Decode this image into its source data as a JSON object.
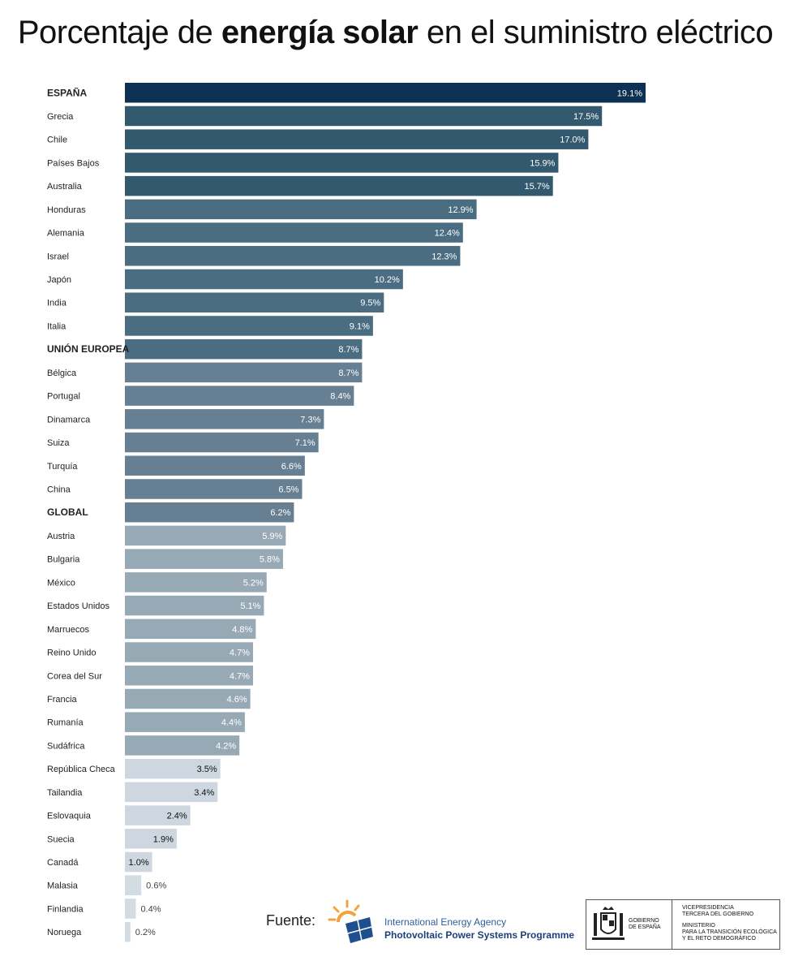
{
  "header": {
    "title_part1": "Porcentaje de ",
    "title_bold": "energía solar",
    "title_part2": " en el suministro eléctrico"
  },
  "chart_data": {
    "type": "bar",
    "orientation": "horizontal",
    "categories": [
      "ESPAÑA",
      "Grecia",
      "Chile",
      "Países Bajos",
      "Australia",
      "Honduras",
      "Alemania",
      "Israel",
      "Japón",
      "India",
      "Italia",
      "UNIÓN EUROPEA",
      "Bélgica",
      "Portugal",
      "Dinamarca",
      "Suiza",
      "Turquía",
      "China",
      "GLOBAL",
      "Austria",
      "Bulgaria",
      "México",
      "Estados Unidos",
      "Marruecos",
      "Reino Unido",
      "Corea del Sur",
      "Francia",
      "Rumanía",
      "Sudáfrica",
      "República Checa",
      "Tailandia",
      "Eslovaquia",
      "Suecia",
      "Canadá",
      "Malasia",
      "Finlandia",
      "Noruega"
    ],
    "values": [
      19.1,
      17.5,
      17.0,
      15.9,
      15.7,
      12.9,
      12.4,
      12.3,
      10.2,
      9.5,
      9.1,
      8.7,
      8.7,
      8.4,
      7.3,
      7.1,
      6.6,
      6.5,
      6.2,
      5.9,
      5.8,
      5.2,
      5.1,
      4.8,
      4.7,
      4.7,
      4.6,
      4.4,
      4.2,
      3.5,
      3.4,
      2.4,
      1.9,
      1.0,
      0.6,
      0.4,
      0.2
    ],
    "value_labels": [
      "19.1%",
      "17.5%",
      "17.0%",
      "15.9%",
      "15.7%",
      "12.9%",
      "12.4%",
      "12.3%",
      "10.2%",
      "9.5%",
      "9.1%",
      "8.7%",
      "8.7%",
      "8.4%",
      "7.3%",
      "7.1%",
      "6.6%",
      "6.5%",
      "6.2%",
      "5.9%",
      "5.8%",
      "5.2%",
      "5.1%",
      "4.8%",
      "4.7%",
      "4.7%",
      "4.6%",
      "4.4%",
      "4.2%",
      "3.5%",
      "3.4%",
      "2.4%",
      "1.9%",
      "1.0%",
      "0.6%",
      "0.4%",
      "0.2%"
    ],
    "bold_categories": [
      "ESPAÑA",
      "UNIÓN EUROPEA",
      "GLOBAL"
    ],
    "xlim": [
      0,
      19.1
    ],
    "grid": false,
    "legend": "none",
    "colors": {
      "highlight": "#0c3152",
      "tier1": "#33596f",
      "tier2": "#4a6d82",
      "tier3": "#667f92",
      "tier4": "#98a9b6",
      "tier5": "#ced7df",
      "tier6": "#d3dbe3"
    }
  },
  "footer": {
    "source_label": "Fuente:",
    "iea_line1": "International Energy Agency",
    "iea_line2": "Photovoltaic Power Systems Programme",
    "gov_name_l1": "GOBIERNO",
    "gov_name_l2": "DE ESPAÑA",
    "ministry_l1": "VICEPRESIDENCIA",
    "ministry_l2": "TERCERA DEL GOBIERNO",
    "ministry_l3": "MINISTERIO",
    "ministry_l4": "PARA LA TRANSICIÓN ECOLÓGICA",
    "ministry_l5": "Y EL RETO DEMOGRÁFICO"
  }
}
